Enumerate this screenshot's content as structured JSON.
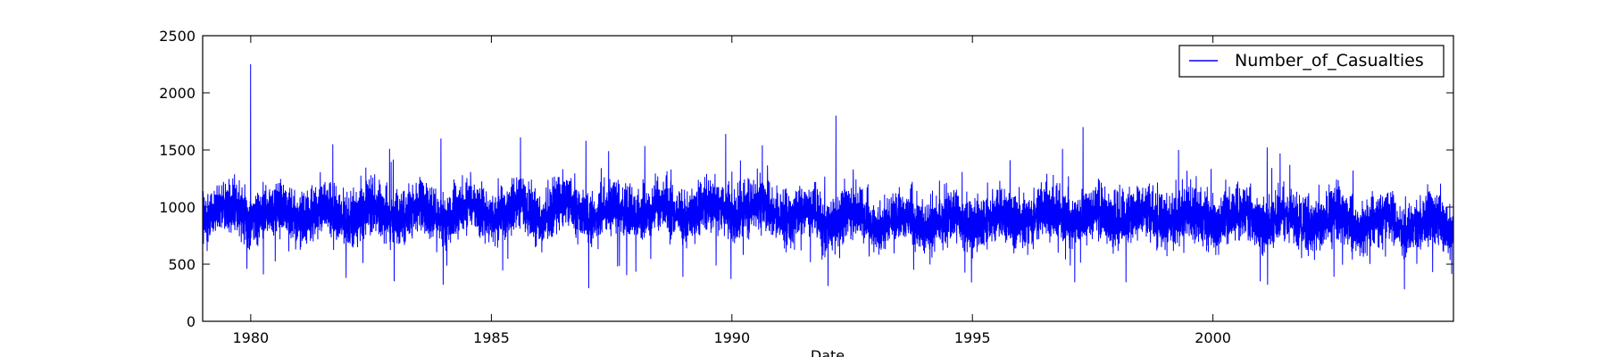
{
  "chart_data": {
    "type": "line",
    "title": "",
    "xlabel": "Date",
    "ylabel": "",
    "x_domain": [
      "1979-01-01",
      "2004-12-31"
    ],
    "ylim": [
      0,
      2500
    ],
    "x_ticks": [
      {
        "value": "1980-01-01",
        "label": "1980"
      },
      {
        "value": "1985-01-01",
        "label": "1985"
      },
      {
        "value": "1990-01-01",
        "label": "1990"
      },
      {
        "value": "1995-01-01",
        "label": "1995"
      },
      {
        "value": "2000-01-01",
        "label": "2000"
      }
    ],
    "y_ticks": [
      {
        "value": 0,
        "label": "0"
      },
      {
        "value": 500,
        "label": "500"
      },
      {
        "value": 1000,
        "label": "1000"
      },
      {
        "value": 1500,
        "label": "1500"
      },
      {
        "value": 2000,
        "label": "2000"
      },
      {
        "value": 2500,
        "label": "2500"
      }
    ],
    "grid": false,
    "legend": {
      "position": "top-right"
    },
    "series": [
      {
        "name": "Number_of_Casualties",
        "color": "#0000ff",
        "style": "daily-noisy",
        "annual_mean": [
          {
            "year": 1979,
            "value": 930
          },
          {
            "year": 1980,
            "value": 920
          },
          {
            "year": 1981,
            "value": 900
          },
          {
            "year": 1982,
            "value": 910
          },
          {
            "year": 1983,
            "value": 900
          },
          {
            "year": 1984,
            "value": 910
          },
          {
            "year": 1985,
            "value": 930
          },
          {
            "year": 1986,
            "value": 930
          },
          {
            "year": 1987,
            "value": 920
          },
          {
            "year": 1988,
            "value": 920
          },
          {
            "year": 1989,
            "value": 940
          },
          {
            "year": 1990,
            "value": 950
          },
          {
            "year": 1991,
            "value": 880
          },
          {
            "year": 1992,
            "value": 860
          },
          {
            "year": 1993,
            "value": 840
          },
          {
            "year": 1994,
            "value": 840
          },
          {
            "year": 1995,
            "value": 850
          },
          {
            "year": 1996,
            "value": 880
          },
          {
            "year": 1997,
            "value": 890
          },
          {
            "year": 1998,
            "value": 880
          },
          {
            "year": 1999,
            "value": 870
          },
          {
            "year": 2000,
            "value": 860
          },
          {
            "year": 2001,
            "value": 850
          },
          {
            "year": 2002,
            "value": 840
          },
          {
            "year": 2003,
            "value": 820
          },
          {
            "year": 2004,
            "value": 800
          }
        ],
        "peaks": [
          {
            "date": "1979-12-31",
            "value": 2250
          },
          {
            "date": "1992-03-01",
            "value": 1800
          },
          {
            "date": "1997-04-20",
            "value": 1700
          },
          {
            "date": "1989-11-15",
            "value": 1640
          },
          {
            "date": "1985-08-10",
            "value": 1610
          },
          {
            "date": "1983-12-15",
            "value": 1600
          },
          {
            "date": "1986-12-20",
            "value": 1580
          },
          {
            "date": "1990-08-20",
            "value": 1540
          },
          {
            "date": "1981-09-15",
            "value": 1550
          },
          {
            "date": "1999-04-15",
            "value": 1500
          },
          {
            "date": "1982-11-20",
            "value": 1510
          },
          {
            "date": "1996-11-15",
            "value": 1510
          },
          {
            "date": "1987-06-10",
            "value": 1490
          }
        ],
        "troughs": [
          {
            "date": "1987-01-10",
            "value": 290
          },
          {
            "date": "2003-12-25",
            "value": 280
          },
          {
            "date": "1992-01-01",
            "value": 310
          },
          {
            "date": "1984-01-01",
            "value": 320
          },
          {
            "date": "1994-12-25",
            "value": 340
          },
          {
            "date": "2000-12-25",
            "value": 350
          },
          {
            "date": "1982-12-25",
            "value": 350
          },
          {
            "date": "1989-12-25",
            "value": 370
          },
          {
            "date": "1981-12-25",
            "value": 380
          },
          {
            "date": "1988-12-25",
            "value": 390
          }
        ]
      }
    ]
  }
}
